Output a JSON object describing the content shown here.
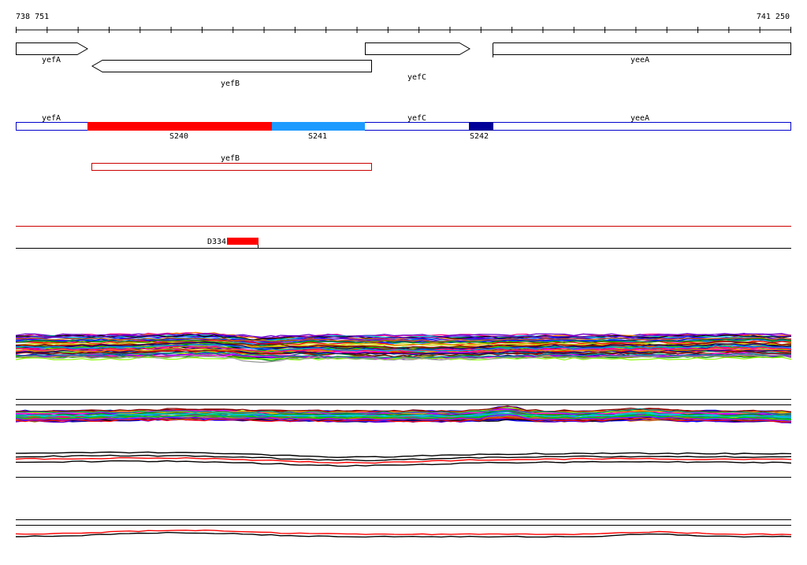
{
  "ruler": {
    "start_label": "738 751",
    "end_label": "741 250"
  },
  "genes": [
    {
      "name": "yefA",
      "strand": "+"
    },
    {
      "name": "yefB",
      "strand": "-"
    },
    {
      "name": "yefC",
      "strand": "+"
    },
    {
      "name": "yeeA",
      "strand": "-"
    }
  ],
  "segments_track": {
    "gene_labels": [
      "yefA",
      "yefC",
      "yeeA"
    ],
    "segments": [
      {
        "label": "S240",
        "color": "#ff0000"
      },
      {
        "label": "S241",
        "color": "#1e9bff"
      },
      {
        "label": "S242",
        "color": "#000099"
      }
    ]
  },
  "antisense_track": {
    "label": "yefB",
    "color": "#cc0000"
  },
  "feature_track": {
    "label": "D334",
    "color": "#ff0000"
  },
  "colors": {
    "gene_outline": "#000000",
    "segment_outline": "#0000cc",
    "divider_red": "#cc0000",
    "profile_red": "#ff0000"
  }
}
